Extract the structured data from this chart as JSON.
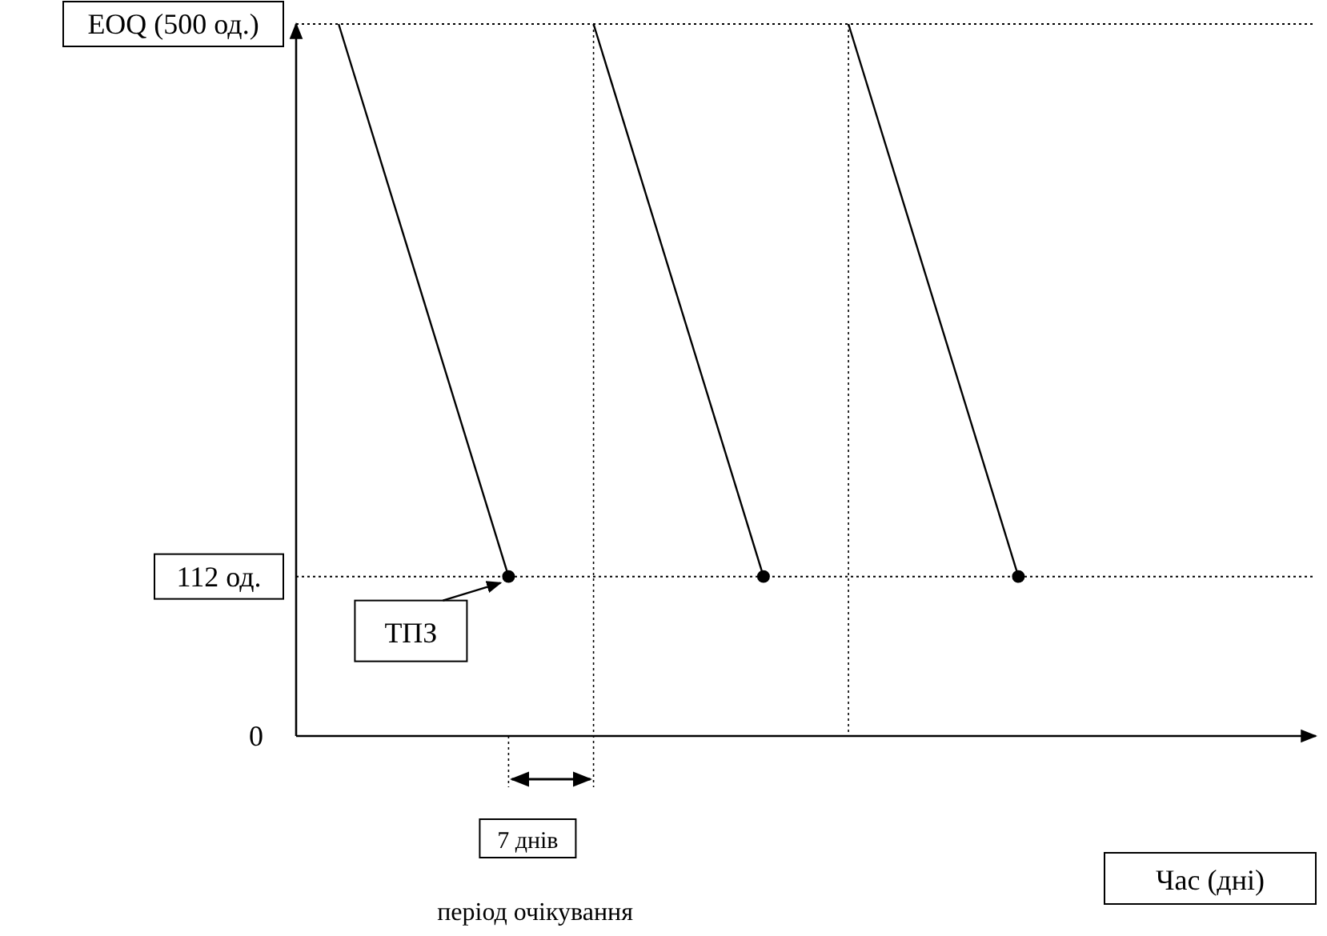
{
  "chart_data": {
    "type": "line",
    "xlabel": "Час (дні)",
    "categories": [
      null,
      null,
      null,
      null,
      null,
      null,
      null,
      null,
      null,
      null,
      null,
      null
    ],
    "ylim": [
      0,
      500
    ],
    "yticks": [
      {
        "value": 0,
        "label": "0"
      },
      {
        "value": 112,
        "label": "112 од."
      },
      {
        "value": 500,
        "label": "EOQ (500 од.)"
      }
    ],
    "tick_labels": "y",
    "marker": "none",
    "line_style": "solid",
    "series": [
      {
        "color": "#000000",
        "values": [
          500,
          null,
          112,
          null,
          null,
          null,
          null,
          null,
          null,
          null,
          null,
          null
        ]
      },
      {
        "color": "#000000",
        "values": [
          null,
          null,
          null,
          500,
          null,
          112,
          null,
          null,
          null,
          null,
          null,
          null
        ]
      },
      {
        "color": "#000000",
        "values": [
          null,
          null,
          null,
          null,
          null,
          null,
          500,
          null,
          112,
          null,
          null,
          null
        ]
      },
      {
        "type": "scatter",
        "marker": "circle",
        "color": "#000000",
        "values": [
          null,
          null,
          112,
          null,
          null,
          112,
          null,
          null,
          112,
          null,
          null,
          null
        ]
      }
    ],
    "ref_lines": [
      {
        "axis": "y",
        "value": 500,
        "line_style": "dotted",
        "color": "#000000"
      },
      {
        "axis": "y",
        "value": 112,
        "line_style": "dotted",
        "color": "#000000"
      }
    ],
    "annotations": [
      {
        "text": "ТПЗ",
        "y": 112
      },
      "7 днів",
      "період очікування"
    ]
  }
}
